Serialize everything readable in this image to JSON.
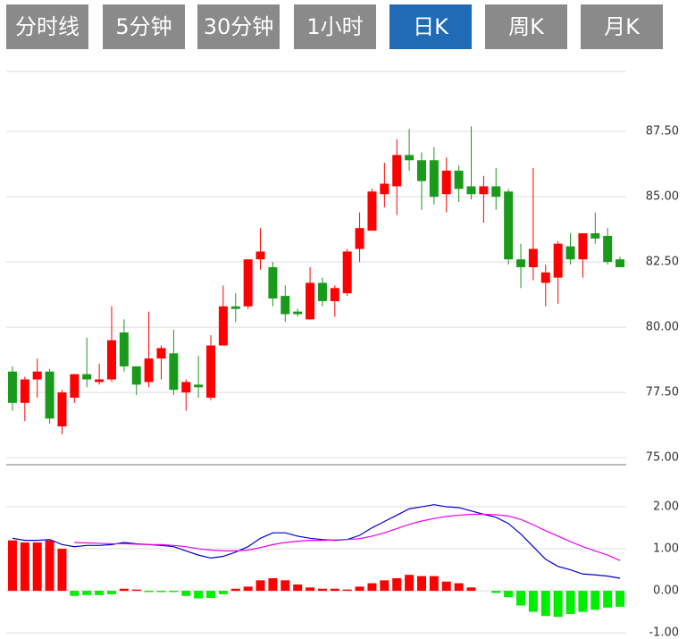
{
  "buttons": {
    "labels": [
      "分时线",
      "5分钟",
      "30分钟",
      "1小时",
      "日K",
      "周K",
      "月K"
    ],
    "active": 4,
    "color": "#8a8a8a",
    "active_color": "#1f6bb5"
  },
  "chart_data": [
    {
      "type": "candlestick",
      "up_color": "#ff0000",
      "down_color": "#1a9a1a",
      "open": [
        78.3,
        77.1,
        78.0,
        78.3,
        76.2,
        77.3,
        78.2,
        77.9,
        78.0,
        79.8,
        78.5,
        77.9,
        78.8,
        79.0,
        77.5,
        77.8,
        77.3,
        79.3,
        80.8,
        80.8,
        82.6,
        82.3,
        81.2,
        80.6,
        80.3,
        81.7,
        81.0,
        81.3,
        83.0,
        83.7,
        85.1,
        85.4,
        86.6,
        86.4,
        86.4,
        85.1,
        86.0,
        85.4,
        85.1,
        85.4,
        85.2,
        82.6,
        82.3,
        81.7,
        81.9,
        83.1,
        82.6,
        83.6,
        83.5,
        82.6
      ],
      "high": [
        78.5,
        78.1,
        78.8,
        78.4,
        77.6,
        78.2,
        79.6,
        78.6,
        80.8,
        80.3,
        78.5,
        80.6,
        79.3,
        79.9,
        78.0,
        78.9,
        79.7,
        81.6,
        81.3,
        82.6,
        83.8,
        82.5,
        81.6,
        80.7,
        82.3,
        81.9,
        81.6,
        83.0,
        84.4,
        85.3,
        86.3,
        87.2,
        87.6,
        86.7,
        86.9,
        86.5,
        86.2,
        87.7,
        85.8,
        86.1,
        85.3,
        83.2,
        86.1,
        82.4,
        83.3,
        83.6,
        83.6,
        84.4,
        83.8,
        82.7
      ],
      "low": [
        76.8,
        76.4,
        77.3,
        76.3,
        75.9,
        77.1,
        77.7,
        77.8,
        77.9,
        78.3,
        77.4,
        77.7,
        78.0,
        77.4,
        76.8,
        77.3,
        77.2,
        79.3,
        80.2,
        80.7,
        82.2,
        80.8,
        80.2,
        80.4,
        80.3,
        80.8,
        80.4,
        81.2,
        82.5,
        83.7,
        84.6,
        84.3,
        86.0,
        84.5,
        84.7,
        84.4,
        84.8,
        84.9,
        84.0,
        84.5,
        82.4,
        81.5,
        81.8,
        80.8,
        80.9,
        82.4,
        81.9,
        83.2,
        82.4,
        82.3
      ],
      "close": [
        77.1,
        78.0,
        78.3,
        76.5,
        77.5,
        78.2,
        78.0,
        78.0,
        79.5,
        78.5,
        77.8,
        78.8,
        79.2,
        77.6,
        77.9,
        77.7,
        79.3,
        80.8,
        80.7,
        82.6,
        82.9,
        81.1,
        80.5,
        80.5,
        81.7,
        81.0,
        81.5,
        82.9,
        83.8,
        85.2,
        85.5,
        86.6,
        86.4,
        85.6,
        85.0,
        86.0,
        85.3,
        85.1,
        85.4,
        85.0,
        82.6,
        82.3,
        83.0,
        82.1,
        83.2,
        82.6,
        83.6,
        83.4,
        82.5,
        82.3
      ],
      "ylim": [
        74.73,
        89.8
      ],
      "yticks": [
        {
          "value": 75,
          "label": "75.00"
        },
        {
          "value": 77.5,
          "label": "77.50"
        },
        {
          "value": 80,
          "label": "80.00"
        },
        {
          "value": 82.5,
          "label": "82.50"
        },
        {
          "value": 85,
          "label": "85.00"
        },
        {
          "value": 87.5,
          "label": "87.50"
        }
      ],
      "grid": true
    },
    {
      "type": "macd",
      "bar_up_color": "#ff0000",
      "bar_down_color": "#00ee00",
      "values": [
        1.2,
        1.15,
        1.15,
        1.2,
        1.0,
        -0.12,
        -0.1,
        -0.1,
        -0.08,
        0.05,
        0.03,
        -0.03,
        -0.03,
        -0.03,
        -0.12,
        -0.18,
        -0.17,
        -0.08,
        0.05,
        0.1,
        0.25,
        0.3,
        0.25,
        0.15,
        0.08,
        0.05,
        0.05,
        0.03,
        0.1,
        0.18,
        0.25,
        0.3,
        0.38,
        0.35,
        0.35,
        0.22,
        0.18,
        0.08,
        0.0,
        -0.05,
        -0.15,
        -0.35,
        -0.5,
        -0.6,
        -0.62,
        -0.55,
        -0.5,
        -0.45,
        -0.4,
        -0.38
      ],
      "series": [
        {
          "color": "#0000cc",
          "values": [
            1.25,
            1.2,
            1.2,
            1.22,
            1.1,
            1.05,
            1.08,
            1.08,
            1.1,
            1.15,
            1.12,
            1.1,
            1.08,
            1.05,
            0.95,
            0.85,
            0.78,
            0.82,
            0.92,
            1.05,
            1.25,
            1.38,
            1.38,
            1.3,
            1.25,
            1.22,
            1.2,
            1.22,
            1.32,
            1.5,
            1.65,
            1.8,
            1.95,
            2.0,
            2.05,
            2.0,
            1.98,
            1.9,
            1.82,
            1.75,
            1.6,
            1.35,
            1.05,
            0.75,
            0.58,
            0.5,
            0.4,
            0.38,
            0.35,
            0.3
          ]
        },
        {
          "color": "#ee00ee",
          "values": [
            null,
            null,
            null,
            null,
            null,
            1.15,
            1.14,
            1.13,
            1.12,
            1.12,
            1.11,
            1.1,
            1.1,
            1.08,
            1.05,
            1.0,
            0.97,
            0.95,
            0.95,
            0.97,
            1.03,
            1.1,
            1.15,
            1.18,
            1.2,
            1.2,
            1.21,
            1.22,
            1.24,
            1.3,
            1.38,
            1.48,
            1.58,
            1.66,
            1.72,
            1.77,
            1.8,
            1.82,
            1.82,
            1.81,
            1.78,
            1.7,
            1.57,
            1.43,
            1.3,
            1.17,
            1.05,
            0.95,
            0.85,
            0.72
          ]
        }
      ],
      "ylim": [
        -1.04,
        3.0
      ],
      "yticks": [
        {
          "value": -1,
          "label": "-1.00"
        },
        {
          "value": 0,
          "label": "0.00"
        },
        {
          "value": 1,
          "label": "1.00"
        },
        {
          "value": 2,
          "label": "2.00"
        }
      ],
      "grid": true
    }
  ]
}
